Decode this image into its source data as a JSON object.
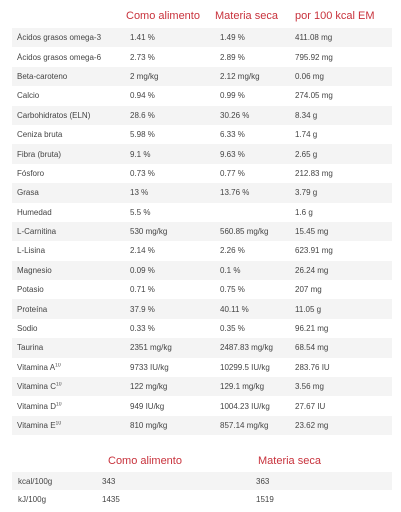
{
  "table1": {
    "headers": [
      "Como alimento",
      "Materia seca",
      "por 100 kcal EM"
    ],
    "rows": [
      {
        "name": "Ácidos grasos omega-3",
        "sup": "",
        "a": "1.41 %",
        "b": "1.49 %",
        "c": "411.08 mg"
      },
      {
        "name": "Ácidos grasos omega-6",
        "sup": "",
        "a": "2.73 %",
        "b": "2.89 %",
        "c": "795.92 mg"
      },
      {
        "name": "Beta-caroteno",
        "sup": "",
        "a": "2 mg/kg",
        "b": "2.12 mg/kg",
        "c": "0.06 mg"
      },
      {
        "name": "Calcio",
        "sup": "",
        "a": "0.94 %",
        "b": "0.99 %",
        "c": "274.05 mg"
      },
      {
        "name": "Carbohidratos (ELN)",
        "sup": "",
        "a": "28.6 %",
        "b": "30.26 %",
        "c": "8.34 g"
      },
      {
        "name": "Ceniza bruta",
        "sup": "",
        "a": "5.98 %",
        "b": "6.33 %",
        "c": "1.74 g"
      },
      {
        "name": "Fibra (bruta)",
        "sup": "",
        "a": "9.1 %",
        "b": "9.63 %",
        "c": "2.65 g"
      },
      {
        "name": "Fósforo",
        "sup": "",
        "a": "0.73 %",
        "b": "0.77 %",
        "c": "212.83 mg"
      },
      {
        "name": "Grasa",
        "sup": "",
        "a": "13 %",
        "b": "13.76 %",
        "c": "3.79 g"
      },
      {
        "name": "Humedad",
        "sup": "",
        "a": "5.5 %",
        "b": "",
        "c": "1.6 g"
      },
      {
        "name": "L-Carnitina",
        "sup": "",
        "a": "530 mg/kg",
        "b": "560.85 mg/kg",
        "c": "15.45 mg"
      },
      {
        "name": "L-Lisina",
        "sup": "",
        "a": "2.14 %",
        "b": "2.26 %",
        "c": "623.91 mg"
      },
      {
        "name": "Magnesio",
        "sup": "",
        "a": "0.09 %",
        "b": "0.1 %",
        "c": "26.24 mg"
      },
      {
        "name": "Potasio",
        "sup": "",
        "a": "0.71 %",
        "b": "0.75 %",
        "c": "207 mg"
      },
      {
        "name": "Proteína",
        "sup": "",
        "a": "37.9 %",
        "b": "40.11 %",
        "c": "11.05 g"
      },
      {
        "name": "Sodio",
        "sup": "",
        "a": "0.33 %",
        "b": "0.35 %",
        "c": "96.21 mg"
      },
      {
        "name": "Taurina",
        "sup": "",
        "a": "2351 mg/kg",
        "b": "2487.83 mg/kg",
        "c": "68.54 mg"
      },
      {
        "name": "Vitamina A",
        "sup": "10",
        "a": "9733 IU/kg",
        "b": "10299.5 IU/kg",
        "c": "283.76 IU"
      },
      {
        "name": "Vitamina C",
        "sup": "10",
        "a": "122 mg/kg",
        "b": "129.1 mg/kg",
        "c": "3.56 mg"
      },
      {
        "name": "Vitamina D",
        "sup": "10",
        "a": "949 IU/kg",
        "b": "1004.23 IU/kg",
        "c": "27.67 IU"
      },
      {
        "name": "Vitamina E",
        "sup": "10",
        "a": "810 mg/kg",
        "b": "857.14 mg/kg",
        "c": "23.62 mg"
      }
    ]
  },
  "table2": {
    "headers": [
      "Como alimento",
      "Materia seca"
    ],
    "rows": [
      {
        "name": "kcal/100g",
        "a": "343",
        "b": "363"
      },
      {
        "name": "kJ/100g",
        "a": "1435",
        "b": "1519"
      }
    ]
  },
  "colors": {
    "header_text": "#c8323c",
    "row_stripe": "#f4f4f4",
    "body_text": "#444444"
  }
}
